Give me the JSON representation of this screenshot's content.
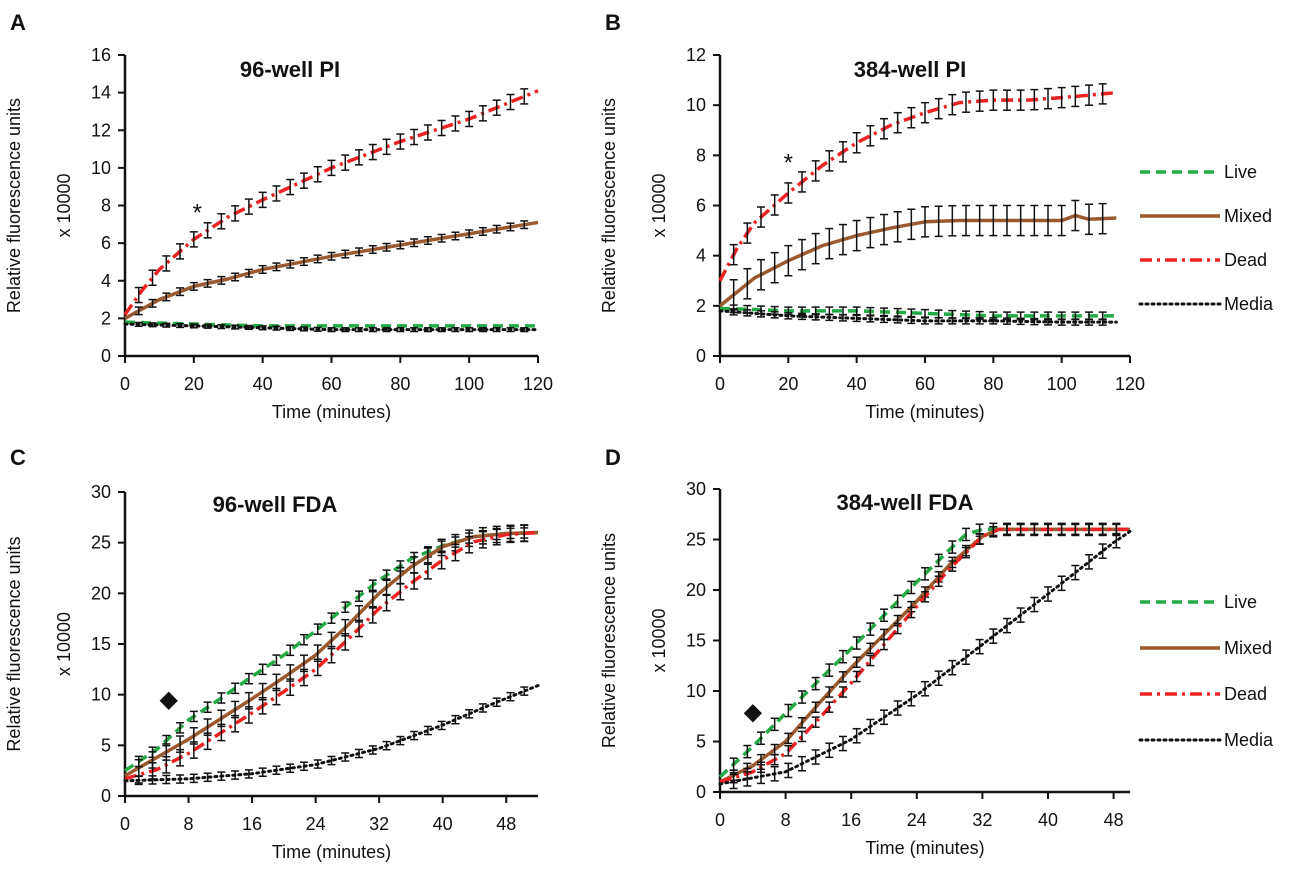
{
  "chart_data": [
    {
      "type": "line",
      "panel": "A",
      "title": "96-well PI",
      "xlabel": "Time (minutes)",
      "ylabel": "Relative fluorescence units",
      "ylabel2": "x 10000",
      "xlim": [
        0,
        120
      ],
      "ylim": [
        0,
        16
      ],
      "xticks": [
        0,
        20,
        40,
        60,
        80,
        100,
        120
      ],
      "yticks": [
        0,
        2,
        4,
        6,
        8,
        10,
        12,
        14,
        16
      ],
      "annotation": {
        "text": "*",
        "x": 21,
        "y": 7.2
      },
      "legend": false,
      "series": [
        {
          "name": "Live",
          "color": "#22aa44",
          "dash": "10,6",
          "points": [
            [
              0,
              1.8
            ],
            [
              20,
              1.7
            ],
            [
              40,
              1.6
            ],
            [
              60,
              1.6
            ],
            [
              80,
              1.6
            ],
            [
              100,
              1.6
            ],
            [
              120,
              1.6
            ]
          ],
          "errorbars": false
        },
        {
          "name": "Mixed",
          "color": "#9b5a2e",
          "dash": "",
          "points": [
            [
              0,
              2.0
            ],
            [
              10,
              3.0
            ],
            [
              20,
              3.7
            ],
            [
              30,
              4.1
            ],
            [
              40,
              4.6
            ],
            [
              60,
              5.3
            ],
            [
              80,
              5.9
            ],
            [
              100,
              6.5
            ],
            [
              120,
              7.1
            ]
          ],
          "errorbars": true,
          "err": 0.2
        },
        {
          "name": "Dead",
          "color": "#ee2222",
          "dash": "12,5,3,5",
          "points": [
            [
              0,
              2.2
            ],
            [
              5,
              3.5
            ],
            [
              10,
              4.6
            ],
            [
              20,
              6.2
            ],
            [
              30,
              7.4
            ],
            [
              40,
              8.3
            ],
            [
              60,
              10.0
            ],
            [
              80,
              11.4
            ],
            [
              100,
              12.6
            ],
            [
              120,
              14.1
            ]
          ],
          "errorbars": true,
          "err": 0.4
        },
        {
          "name": "Media",
          "color": "#111111",
          "dash": "2,4",
          "points": [
            [
              0,
              1.7
            ],
            [
              20,
              1.6
            ],
            [
              40,
              1.5
            ],
            [
              60,
              1.4
            ],
            [
              80,
              1.4
            ],
            [
              100,
              1.4
            ],
            [
              120,
              1.4
            ]
          ],
          "errorbars": true,
          "err": 0.1
        }
      ]
    },
    {
      "type": "line",
      "panel": "B",
      "title": "384-well PI",
      "xlabel": "Time (minutes)",
      "ylabel": "Relative fluorescence units",
      "ylabel2": "x 10000",
      "xlim": [
        0,
        120
      ],
      "ylim": [
        0,
        12
      ],
      "xticks": [
        0,
        20,
        40,
        60,
        80,
        100,
        120
      ],
      "yticks": [
        0,
        2,
        4,
        6,
        8,
        10,
        12
      ],
      "annotation": {
        "text": "*",
        "x": 20,
        "y": 7.4
      },
      "legend": true,
      "series": [
        {
          "name": "Live",
          "color": "#22aa44",
          "dash": "10,6",
          "points": [
            [
              0,
              1.9
            ],
            [
              20,
              1.8
            ],
            [
              40,
              1.8
            ],
            [
              60,
              1.7
            ],
            [
              80,
              1.6
            ],
            [
              100,
              1.6
            ],
            [
              116,
              1.6
            ]
          ],
          "errorbars": true,
          "err": 0.15
        },
        {
          "name": "Mixed",
          "color": "#9b5a2e",
          "dash": "",
          "points": [
            [
              0,
              2.0
            ],
            [
              10,
              3.1
            ],
            [
              20,
              3.8
            ],
            [
              30,
              4.4
            ],
            [
              40,
              4.8
            ],
            [
              50,
              5.1
            ],
            [
              60,
              5.35
            ],
            [
              70,
              5.4
            ],
            [
              80,
              5.4
            ],
            [
              90,
              5.4
            ],
            [
              100,
              5.4
            ],
            [
              104,
              5.6
            ],
            [
              108,
              5.45
            ],
            [
              116,
              5.5
            ]
          ],
          "errorbars": true,
          "err": 0.6
        },
        {
          "name": "Dead",
          "color": "#ee2222",
          "dash": "12,5,3,5",
          "points": [
            [
              0,
              3.0
            ],
            [
              5,
              4.3
            ],
            [
              10,
              5.3
            ],
            [
              20,
              6.5
            ],
            [
              30,
              7.6
            ],
            [
              40,
              8.5
            ],
            [
              50,
              9.2
            ],
            [
              60,
              9.7
            ],
            [
              70,
              10.1
            ],
            [
              80,
              10.2
            ],
            [
              90,
              10.2
            ],
            [
              100,
              10.3
            ],
            [
              116,
              10.5
            ]
          ],
          "errorbars": true,
          "err": 0.4
        },
        {
          "name": "Media",
          "color": "#111111",
          "dash": "2,4",
          "points": [
            [
              0,
              1.8
            ],
            [
              20,
              1.6
            ],
            [
              40,
              1.5
            ],
            [
              60,
              1.4
            ],
            [
              80,
              1.4
            ],
            [
              100,
              1.35
            ],
            [
              116,
              1.35
            ]
          ],
          "errorbars": true,
          "err": 0.12
        }
      ]
    },
    {
      "type": "line",
      "panel": "C",
      "title": "96-well FDA",
      "xlabel": "Time (minutes)",
      "ylabel": "Relative fluorescence units",
      "ylabel2": "x 10000",
      "xlim": [
        0,
        52
      ],
      "ylim": [
        0,
        30
      ],
      "xticks": [
        0,
        8,
        16,
        24,
        32,
        40,
        48
      ],
      "yticks": [
        0,
        5,
        10,
        15,
        20,
        25,
        30
      ],
      "annotation": {
        "text": "◆",
        "x": 5.5,
        "y": 8.8
      },
      "legend": false,
      "series": [
        {
          "name": "Live",
          "color": "#22aa44",
          "dash": "10,6",
          "points": [
            [
              0,
              2.5
            ],
            [
              4,
              4.6
            ],
            [
              8,
              7.5
            ],
            [
              12,
              9.6
            ],
            [
              16,
              11.8
            ],
            [
              20,
              13.9
            ],
            [
              24,
              16.3
            ],
            [
              28,
              18.8
            ],
            [
              32,
              21.3
            ],
            [
              36,
              23.4
            ],
            [
              40,
              24.7
            ],
            [
              44,
              25.6
            ],
            [
              48,
              25.9
            ],
            [
              52,
              26.0
            ]
          ],
          "errorbars": true,
          "err": 0.5
        },
        {
          "name": "Mixed",
          "color": "#9b5a2e",
          "dash": "",
          "points": [
            [
              0,
              2.0
            ],
            [
              4,
              3.8
            ],
            [
              8,
              5.6
            ],
            [
              12,
              7.6
            ],
            [
              16,
              9.6
            ],
            [
              20,
              11.7
            ],
            [
              24,
              13.9
            ],
            [
              28,
              16.8
            ],
            [
              32,
              20.0
            ],
            [
              36,
              22.6
            ],
            [
              40,
              24.6
            ],
            [
              44,
              25.6
            ],
            [
              48,
              25.9
            ],
            [
              52,
              26.0
            ]
          ],
          "errorbars": true,
          "err": 0.8
        },
        {
          "name": "Dead",
          "color": "#ee2222",
          "dash": "12,5,3,5",
          "points": [
            [
              0,
              1.7
            ],
            [
              4,
              2.6
            ],
            [
              8,
              4.2
            ],
            [
              12,
              6.2
            ],
            [
              16,
              8.2
            ],
            [
              20,
              10.3
            ],
            [
              24,
              12.5
            ],
            [
              28,
              15.4
            ],
            [
              32,
              18.5
            ],
            [
              36,
              21.0
            ],
            [
              40,
              23.3
            ],
            [
              44,
              25.1
            ],
            [
              48,
              25.8
            ],
            [
              52,
              26.0
            ]
          ],
          "errorbars": true,
          "err": 0.8
        },
        {
          "name": "Media",
          "color": "#111111",
          "dash": "2,4",
          "points": [
            [
              0,
              1.5
            ],
            [
              8,
              1.7
            ],
            [
              16,
              2.2
            ],
            [
              24,
              3.1
            ],
            [
              32,
              4.7
            ],
            [
              40,
              7.0
            ],
            [
              46,
              9.0
            ],
            [
              52,
              10.9
            ]
          ],
          "errorbars": true,
          "err": 0.4
        }
      ]
    },
    {
      "type": "line",
      "panel": "D",
      "title": "384-well FDA",
      "xlabel": "Time (minutes)",
      "ylabel": "Relative fluorescence units",
      "ylabel2": "x 10000",
      "xlim": [
        0,
        50
      ],
      "ylim": [
        0,
        30
      ],
      "xticks": [
        0,
        8,
        16,
        24,
        32,
        40,
        48
      ],
      "yticks": [
        0,
        5,
        10,
        15,
        20,
        25,
        30
      ],
      "annotation": {
        "text": "◆",
        "x": 4,
        "y": 7.2
      },
      "legend": true,
      "series": [
        {
          "name": "Live",
          "color": "#22aa44",
          "dash": "10,6",
          "points": [
            [
              0,
              1.5
            ],
            [
              4,
              4.5
            ],
            [
              8,
              7.8
            ],
            [
              12,
              11.0
            ],
            [
              16,
              14.2
            ],
            [
              20,
              17.5
            ],
            [
              24,
              20.8
            ],
            [
              28,
              24.0
            ],
            [
              30,
              25.5
            ],
            [
              32,
              26.0
            ],
            [
              50,
              26.0
            ]
          ],
          "errorbars": true,
          "err": 0.6
        },
        {
          "name": "Mixed",
          "color": "#9b5a2e",
          "dash": "",
          "points": [
            [
              0,
              1.0
            ],
            [
              4,
              2.6
            ],
            [
              8,
              5.0
            ],
            [
              12,
              8.7
            ],
            [
              16,
              12.3
            ],
            [
              20,
              15.6
            ],
            [
              24,
              18.9
            ],
            [
              28,
              22.5
            ],
            [
              32,
              25.3
            ],
            [
              34,
              26.0
            ],
            [
              50,
              26.0
            ]
          ],
          "errorbars": true,
          "err": 0.5
        },
        {
          "name": "Dead",
          "color": "#ee2222",
          "dash": "12,5,3,5",
          "points": [
            [
              0,
              1.0
            ],
            [
              4,
              2.0
            ],
            [
              8,
              3.8
            ],
            [
              12,
              7.2
            ],
            [
              16,
              10.8
            ],
            [
              20,
              14.6
            ],
            [
              24,
              18.4
            ],
            [
              28,
              22.1
            ],
            [
              32,
              25.3
            ],
            [
              34,
              26.0
            ],
            [
              50,
              26.0
            ]
          ],
          "errorbars": true,
          "err": 0.5
        },
        {
          "name": "Media",
          "color": "#111111",
          "dash": "2,4",
          "points": [
            [
              0,
              0.8
            ],
            [
              8,
              2.0
            ],
            [
              16,
              5.2
            ],
            [
              24,
              9.6
            ],
            [
              32,
              14.6
            ],
            [
              40,
              19.6
            ],
            [
              48,
              24.7
            ],
            [
              50,
              25.8
            ]
          ],
          "errorbars": true,
          "err": 0.7
        }
      ]
    }
  ]
}
